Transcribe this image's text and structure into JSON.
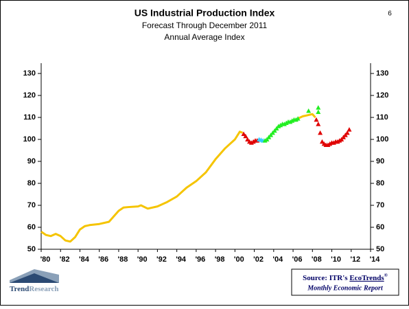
{
  "chart_data": {
    "type": "line",
    "title": "US Industrial Production Index",
    "subtitle": [
      "Forecast Through December 2011",
      "Annual Average Index"
    ],
    "page_number": "6",
    "xlim": [
      1980,
      2014
    ],
    "ylim": [
      50,
      130
    ],
    "yticks": [
      50,
      60,
      70,
      80,
      90,
      100,
      110,
      120,
      130
    ],
    "xticks": [
      {
        "value": 1980,
        "label": "'80"
      },
      {
        "value": 1982,
        "label": "'82"
      },
      {
        "value": 1984,
        "label": "'84"
      },
      {
        "value": 1986,
        "label": "'86"
      },
      {
        "value": 1988,
        "label": "'88"
      },
      {
        "value": 1990,
        "label": "'90"
      },
      {
        "value": 1992,
        "label": "'92"
      },
      {
        "value": 1994,
        "label": "'94"
      },
      {
        "value": 1996,
        "label": "'96"
      },
      {
        "value": 1998,
        "label": "'98"
      },
      {
        "value": 2000,
        "label": "'00"
      },
      {
        "value": 2002,
        "label": "'02"
      },
      {
        "value": 2004,
        "label": "'04"
      },
      {
        "value": 2006,
        "label": "'06"
      },
      {
        "value": 2008,
        "label": "'08"
      },
      {
        "value": 2010,
        "label": "'10"
      },
      {
        "value": 2012,
        "label": "'12"
      },
      {
        "value": 2014,
        "label": "'14"
      }
    ],
    "series": [
      {
        "style": "line",
        "color": "#f5c400",
        "x": [
          1980,
          1980.5,
          1981,
          1981.5,
          1982,
          1982.5,
          1983,
          1983.5,
          1984,
          1984.5,
          1985,
          1986,
          1987,
          1987.5,
          1988,
          1988.5,
          1989,
          1990,
          1990.3,
          1991,
          1992,
          1993,
          1994,
          1995,
          1996,
          1997,
          1998,
          1999,
          2000,
          2000.5,
          2000.8,
          2003.5,
          2006.5,
          2007,
          2007.5,
          2008,
          2008.3
        ],
        "values": [
          58,
          56.5,
          56,
          57,
          56,
          54,
          53.5,
          55.5,
          59,
          60.5,
          61,
          61.5,
          62.5,
          65,
          67.5,
          69,
          69.2,
          69.5,
          70,
          68.5,
          69.5,
          71.5,
          74,
          78,
          81,
          85,
          91,
          96,
          100,
          103.5,
          103,
          null,
          109.5,
          110.5,
          111,
          111.5,
          110
        ]
      },
      {
        "style": "marker",
        "color": "#e00000",
        "x": [
          2000.9,
          2001.1,
          2001.3,
          2001.5,
          2001.7,
          2001.9,
          2002.1,
          2002.3
        ],
        "values": [
          102.5,
          101.5,
          100,
          99,
          98.5,
          99,
          99.5,
          99.5
        ]
      },
      {
        "style": "marker",
        "color": "#33ccff",
        "x": [
          2002.5,
          2002.7,
          2002.9
        ],
        "values": [
          100,
          99.8,
          99.5
        ]
      },
      {
        "style": "marker",
        "color": "#22ee22",
        "x": [
          2003.1,
          2003.3,
          2003.5,
          2003.7,
          2003.9,
          2004.1,
          2004.3,
          2004.5,
          2004.7,
          2004.9,
          2005.1,
          2005.3,
          2005.5,
          2005.7,
          2005.9,
          2006.1,
          2006.3,
          2006.5,
          2007.6,
          2008.6,
          2008.6
        ],
        "values": [
          99.5,
          100,
          101,
          102,
          103,
          104,
          105,
          106,
          106.5,
          107,
          107,
          107.5,
          108,
          108,
          108.5,
          109,
          109,
          109.5,
          113,
          114.5,
          112.5
        ]
      },
      {
        "style": "marker",
        "color": "#e00000",
        "x": [
          2008.4,
          2008.6,
          2008.8,
          2009.0,
          2009.2,
          2009.4,
          2009.6,
          2009.8,
          2010.0,
          2010.2,
          2010.4,
          2010.6,
          2010.8,
          2011.0,
          2011.2,
          2011.4,
          2011.6,
          2011.8
        ],
        "values": [
          109,
          107,
          103,
          99,
          98,
          97.5,
          97.5,
          98,
          98.5,
          98.5,
          99,
          99,
          99.5,
          100,
          101,
          102,
          103,
          104.5
        ]
      }
    ],
    "logo": [
      "Trend",
      "Research"
    ],
    "source": {
      "prefix": "Source: ITR's",
      "link": "EcoTrends",
      "mark": "®",
      "report": "Monthly Economic Report"
    }
  }
}
